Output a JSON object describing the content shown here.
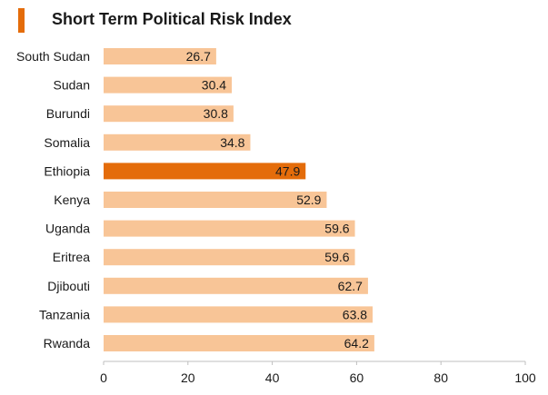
{
  "chart_data": {
    "type": "bar",
    "orientation": "horizontal",
    "title": "Short Term Political Risk Index",
    "categories": [
      "South Sudan",
      "Sudan",
      "Burundi",
      "Somalia",
      "Ethiopia",
      "Kenya",
      "Uganda",
      "Eritrea",
      "Djibouti",
      "Tanzania",
      "Rwanda"
    ],
    "values": [
      26.7,
      30.4,
      30.8,
      34.8,
      47.9,
      52.9,
      59.6,
      59.6,
      62.7,
      63.8,
      64.2
    ],
    "value_labels": [
      "26.7",
      "30.4",
      "30.8",
      "34.8",
      "47.9",
      "52.9",
      "59.6",
      "59.6",
      "62.7",
      "63.8",
      "64.2"
    ],
    "highlight": "Ethiopia",
    "xlim": [
      0,
      100
    ],
    "xticks": [
      "0",
      "20",
      "40",
      "60",
      "80",
      "100"
    ],
    "xlabel": "",
    "ylabel": "",
    "grid": false,
    "legend": "none",
    "colors": {
      "bar": "#f8c597",
      "highlight": "#e46c0a",
      "title_accent": "#e46c0a",
      "axis": "#bfbfbf",
      "text": "#1a1a1a"
    }
  }
}
